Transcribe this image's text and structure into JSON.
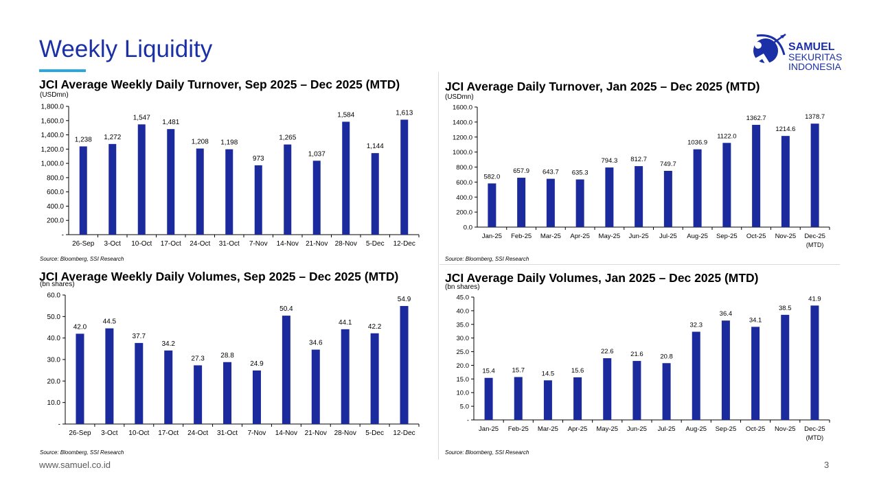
{
  "page": {
    "title": "Weekly Liquidity",
    "footer_url": "www.samuel.co.id",
    "page_number": "3",
    "accent_color": "#29a8e0",
    "brand_color": "#1b2fa6",
    "bar_color": "#1b2a9c"
  },
  "logo": {
    "line1": "SAMUEL",
    "line2": "SEKURITAS",
    "line3": "INDONESIA",
    "icon": "archer-logo-icon"
  },
  "chart_data": [
    {
      "id": "c1",
      "type": "bar",
      "title": "JCI Average Weekly Daily Turnover, Sep 2025 – Dec 2025 (MTD)",
      "unit": "(USDmn)",
      "source": "Source: Bloomberg, SSI Research",
      "categories": [
        "26-Sep",
        "3-Oct",
        "10-Oct",
        "17-Oct",
        "24-Oct",
        "31-Oct",
        "7-Nov",
        "14-Nov",
        "21-Nov",
        "28-Nov",
        "5-Dec",
        "12-Dec"
      ],
      "values": [
        1238,
        1272,
        1547,
        1481,
        1208,
        1198,
        973,
        1265,
        1037,
        1584,
        1144,
        1613
      ],
      "value_labels": [
        "1,238",
        "1,272",
        "1,547",
        "1,481",
        "1,208",
        "1,198",
        "973",
        "1,265",
        "1,037",
        "1,584",
        "1,144",
        "1,613"
      ],
      "ylim": [
        0,
        1800
      ],
      "yticks": [
        "-",
        "200.0",
        "400.0",
        "600.0",
        "800.0",
        "1,000.0",
        "1,200.0",
        "1,400.0",
        "1,600.0",
        "1,800.0"
      ],
      "grid": false
    },
    {
      "id": "c2",
      "type": "bar",
      "title": "JCI Average Daily Turnover, Jan 2025 – Dec 2025 (MTD)",
      "unit": "(USDmn)",
      "source": "Source: Bloomberg, SSI Research",
      "categories": [
        "Jan-25",
        "Feb-25",
        "Mar-25",
        "Apr-25",
        "May-25",
        "Jun-25",
        "Jul-25",
        "Aug-25",
        "Sep-25",
        "Oct-25",
        "Nov-25",
        "Dec-25"
      ],
      "category_sublabel": {
        "index": 11,
        "text": "(MTD)"
      },
      "values": [
        582.0,
        657.9,
        643.7,
        635.3,
        794.3,
        812.7,
        749.7,
        1036.9,
        1122.0,
        1362.7,
        1214.6,
        1378.7
      ],
      "value_labels": [
        "582.0",
        "657.9",
        "643.7",
        "635.3",
        "794.3",
        "812.7",
        "749.7",
        "1036.9",
        "1122.0",
        "1362.7",
        "1214.6",
        "1378.7"
      ],
      "ylim": [
        0,
        1600
      ],
      "yticks": [
        "0.0",
        "200.0",
        "400.0",
        "600.0",
        "800.0",
        "1000.0",
        "1200.0",
        "1400.0",
        "1600.0"
      ],
      "grid": false
    },
    {
      "id": "c3",
      "type": "bar",
      "title": "JCI Average Weekly Daily Volumes, Sep 2025 – Dec 2025 (MTD)",
      "unit": "(bn shares)",
      "source": "Source: Bloomberg, SSI Research",
      "categories": [
        "26-Sep",
        "3-Oct",
        "10-Oct",
        "17-Oct",
        "24-Oct",
        "31-Oct",
        "7-Nov",
        "14-Nov",
        "21-Nov",
        "28-Nov",
        "5-Dec",
        "12-Dec"
      ],
      "values": [
        42.0,
        44.5,
        37.7,
        34.2,
        27.3,
        28.8,
        24.9,
        50.4,
        34.6,
        44.1,
        42.2,
        54.9
      ],
      "value_labels": [
        "42.0",
        "44.5",
        "37.7",
        "34.2",
        "27.3",
        "28.8",
        "24.9",
        "50.4",
        "34.6",
        "44.1",
        "42.2",
        "54.9"
      ],
      "ylim": [
        0,
        60
      ],
      "yticks": [
        "-",
        "10.0",
        "20.0",
        "30.0",
        "40.0",
        "50.0",
        "60.0"
      ],
      "grid": false
    },
    {
      "id": "c4",
      "type": "bar",
      "title": "JCI Average Daily Volumes, Jan 2025 – Dec 2025 (MTD)",
      "unit": "(bn shares)",
      "source": "Source: Bloomberg, SSI Research",
      "categories": [
        "Jan-25",
        "Feb-25",
        "Mar-25",
        "Apr-25",
        "May-25",
        "Jun-25",
        "Jul-25",
        "Aug-25",
        "Sep-25",
        "Oct-25",
        "Nov-25",
        "Dec-25"
      ],
      "category_sublabel": {
        "index": 11,
        "text": "(MTD)"
      },
      "values": [
        15.4,
        15.7,
        14.5,
        15.6,
        22.6,
        21.6,
        20.8,
        32.3,
        36.4,
        34.1,
        38.5,
        41.9
      ],
      "value_labels": [
        "15.4",
        "15.7",
        "14.5",
        "15.6",
        "22.6",
        "21.6",
        "20.8",
        "32.3",
        "36.4",
        "34.1",
        "38.5",
        "41.9"
      ],
      "ylim": [
        0,
        45
      ],
      "yticks": [
        "-",
        "5.0",
        "10.0",
        "15.0",
        "20.0",
        "25.0",
        "30.0",
        "35.0",
        "40.0",
        "45.0"
      ],
      "grid": false
    }
  ]
}
